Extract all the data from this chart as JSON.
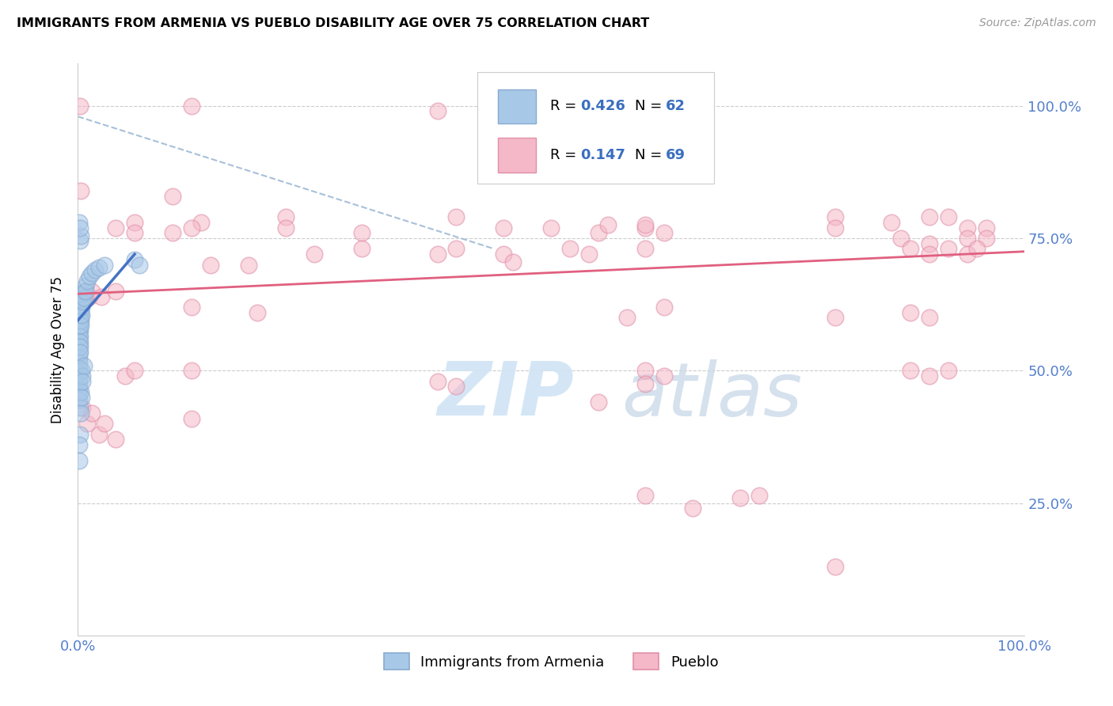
{
  "title": "IMMIGRANTS FROM ARMENIA VS PUEBLO DISABILITY AGE OVER 75 CORRELATION CHART",
  "source": "Source: ZipAtlas.com",
  "ylabel": "Disability Age Over 75",
  "xlim": [
    0,
    1.0
  ],
  "ylim": [
    0,
    1.08
  ],
  "blue_color": "#a8c8e8",
  "blue_edge_color": "#88aad0",
  "pink_color": "#f5b8c8",
  "pink_edge_color": "#e090a8",
  "blue_line_color": "#4472c4",
  "pink_line_color": "#e06080",
  "dashed_line_color": "#a8c0d8",
  "grid_color": "#cccccc",
  "tick_color": "#5580cc",
  "blue_line": [
    [
      0.0,
      0.595
    ],
    [
      0.06,
      0.72
    ]
  ],
  "dashed_line": [
    [
      0.0,
      0.98
    ],
    [
      0.44,
      0.73
    ]
  ],
  "pink_line": [
    [
      0.0,
      0.645
    ],
    [
      1.0,
      0.725
    ]
  ],
  "blue_points": [
    [
      0.001,
      0.595
    ],
    [
      0.001,
      0.585
    ],
    [
      0.001,
      0.575
    ],
    [
      0.001,
      0.565
    ],
    [
      0.001,
      0.555
    ],
    [
      0.001,
      0.545
    ],
    [
      0.001,
      0.535
    ],
    [
      0.001,
      0.525
    ],
    [
      0.001,
      0.515
    ],
    [
      0.001,
      0.505
    ],
    [
      0.001,
      0.495
    ],
    [
      0.001,
      0.485
    ],
    [
      0.001,
      0.475
    ],
    [
      0.001,
      0.465
    ],
    [
      0.001,
      0.455
    ],
    [
      0.001,
      0.445
    ],
    [
      0.002,
      0.605
    ],
    [
      0.002,
      0.595
    ],
    [
      0.002,
      0.585
    ],
    [
      0.002,
      0.575
    ],
    [
      0.002,
      0.565
    ],
    [
      0.002,
      0.555
    ],
    [
      0.002,
      0.545
    ],
    [
      0.002,
      0.535
    ],
    [
      0.003,
      0.625
    ],
    [
      0.003,
      0.615
    ],
    [
      0.003,
      0.605
    ],
    [
      0.003,
      0.595
    ],
    [
      0.003,
      0.585
    ],
    [
      0.004,
      0.635
    ],
    [
      0.004,
      0.62
    ],
    [
      0.004,
      0.605
    ],
    [
      0.005,
      0.645
    ],
    [
      0.005,
      0.63
    ],
    [
      0.006,
      0.65
    ],
    [
      0.006,
      0.638
    ],
    [
      0.008,
      0.66
    ],
    [
      0.008,
      0.65
    ],
    [
      0.01,
      0.67
    ],
    [
      0.012,
      0.678
    ],
    [
      0.015,
      0.685
    ],
    [
      0.018,
      0.69
    ],
    [
      0.022,
      0.695
    ],
    [
      0.028,
      0.7
    ],
    [
      0.002,
      0.43
    ],
    [
      0.002,
      0.38
    ],
    [
      0.003,
      0.42
    ],
    [
      0.001,
      0.36
    ],
    [
      0.001,
      0.33
    ],
    [
      0.06,
      0.71
    ],
    [
      0.065,
      0.7
    ],
    [
      0.002,
      0.745
    ],
    [
      0.003,
      0.755
    ],
    [
      0.001,
      0.78
    ],
    [
      0.002,
      0.77
    ],
    [
      0.004,
      0.5
    ],
    [
      0.005,
      0.49
    ],
    [
      0.006,
      0.51
    ],
    [
      0.003,
      0.46
    ],
    [
      0.004,
      0.45
    ],
    [
      0.005,
      0.48
    ]
  ],
  "pink_points": [
    [
      0.002,
      1.0
    ],
    [
      0.12,
      1.0
    ],
    [
      0.38,
      0.99
    ],
    [
      0.55,
      1.0
    ],
    [
      0.65,
      0.99
    ],
    [
      0.003,
      0.84
    ],
    [
      0.1,
      0.83
    ],
    [
      0.13,
      0.78
    ],
    [
      0.06,
      0.78
    ],
    [
      0.22,
      0.79
    ],
    [
      0.22,
      0.77
    ],
    [
      0.3,
      0.76
    ],
    [
      0.6,
      0.77
    ],
    [
      0.62,
      0.76
    ],
    [
      0.8,
      0.79
    ],
    [
      0.86,
      0.78
    ],
    [
      0.9,
      0.79
    ],
    [
      0.92,
      0.79
    ],
    [
      0.94,
      0.77
    ],
    [
      0.94,
      0.75
    ],
    [
      0.96,
      0.77
    ],
    [
      0.96,
      0.75
    ],
    [
      0.1,
      0.76
    ],
    [
      0.12,
      0.77
    ],
    [
      0.04,
      0.77
    ],
    [
      0.06,
      0.76
    ],
    [
      0.4,
      0.79
    ],
    [
      0.45,
      0.77
    ],
    [
      0.5,
      0.77
    ],
    [
      0.55,
      0.76
    ],
    [
      0.56,
      0.775
    ],
    [
      0.6,
      0.775
    ],
    [
      0.8,
      0.77
    ],
    [
      0.87,
      0.75
    ],
    [
      0.9,
      0.74
    ],
    [
      0.14,
      0.7
    ],
    [
      0.18,
      0.7
    ],
    [
      0.25,
      0.72
    ],
    [
      0.3,
      0.73
    ],
    [
      0.38,
      0.72
    ],
    [
      0.4,
      0.73
    ],
    [
      0.45,
      0.72
    ],
    [
      0.46,
      0.705
    ],
    [
      0.52,
      0.73
    ],
    [
      0.54,
      0.72
    ],
    [
      0.6,
      0.73
    ],
    [
      0.88,
      0.73
    ],
    [
      0.9,
      0.72
    ],
    [
      0.92,
      0.73
    ],
    [
      0.94,
      0.72
    ],
    [
      0.95,
      0.73
    ],
    [
      0.005,
      0.64
    ],
    [
      0.012,
      0.64
    ],
    [
      0.015,
      0.65
    ],
    [
      0.025,
      0.64
    ],
    [
      0.04,
      0.65
    ],
    [
      0.12,
      0.62
    ],
    [
      0.19,
      0.61
    ],
    [
      0.58,
      0.6
    ],
    [
      0.62,
      0.62
    ],
    [
      0.8,
      0.6
    ],
    [
      0.88,
      0.61
    ],
    [
      0.9,
      0.6
    ],
    [
      0.05,
      0.49
    ],
    [
      0.06,
      0.5
    ],
    [
      0.12,
      0.5
    ],
    [
      0.38,
      0.48
    ],
    [
      0.6,
      0.5
    ],
    [
      0.62,
      0.49
    ],
    [
      0.88,
      0.5
    ],
    [
      0.9,
      0.49
    ],
    [
      0.92,
      0.5
    ],
    [
      0.005,
      0.43
    ],
    [
      0.01,
      0.4
    ],
    [
      0.015,
      0.42
    ],
    [
      0.022,
      0.38
    ],
    [
      0.028,
      0.4
    ],
    [
      0.04,
      0.37
    ],
    [
      0.12,
      0.41
    ],
    [
      0.6,
      0.265
    ],
    [
      0.65,
      0.24
    ],
    [
      0.7,
      0.26
    ],
    [
      0.72,
      0.265
    ],
    [
      0.8,
      0.13
    ],
    [
      0.4,
      0.47
    ],
    [
      0.55,
      0.44
    ],
    [
      0.6,
      0.475
    ]
  ]
}
